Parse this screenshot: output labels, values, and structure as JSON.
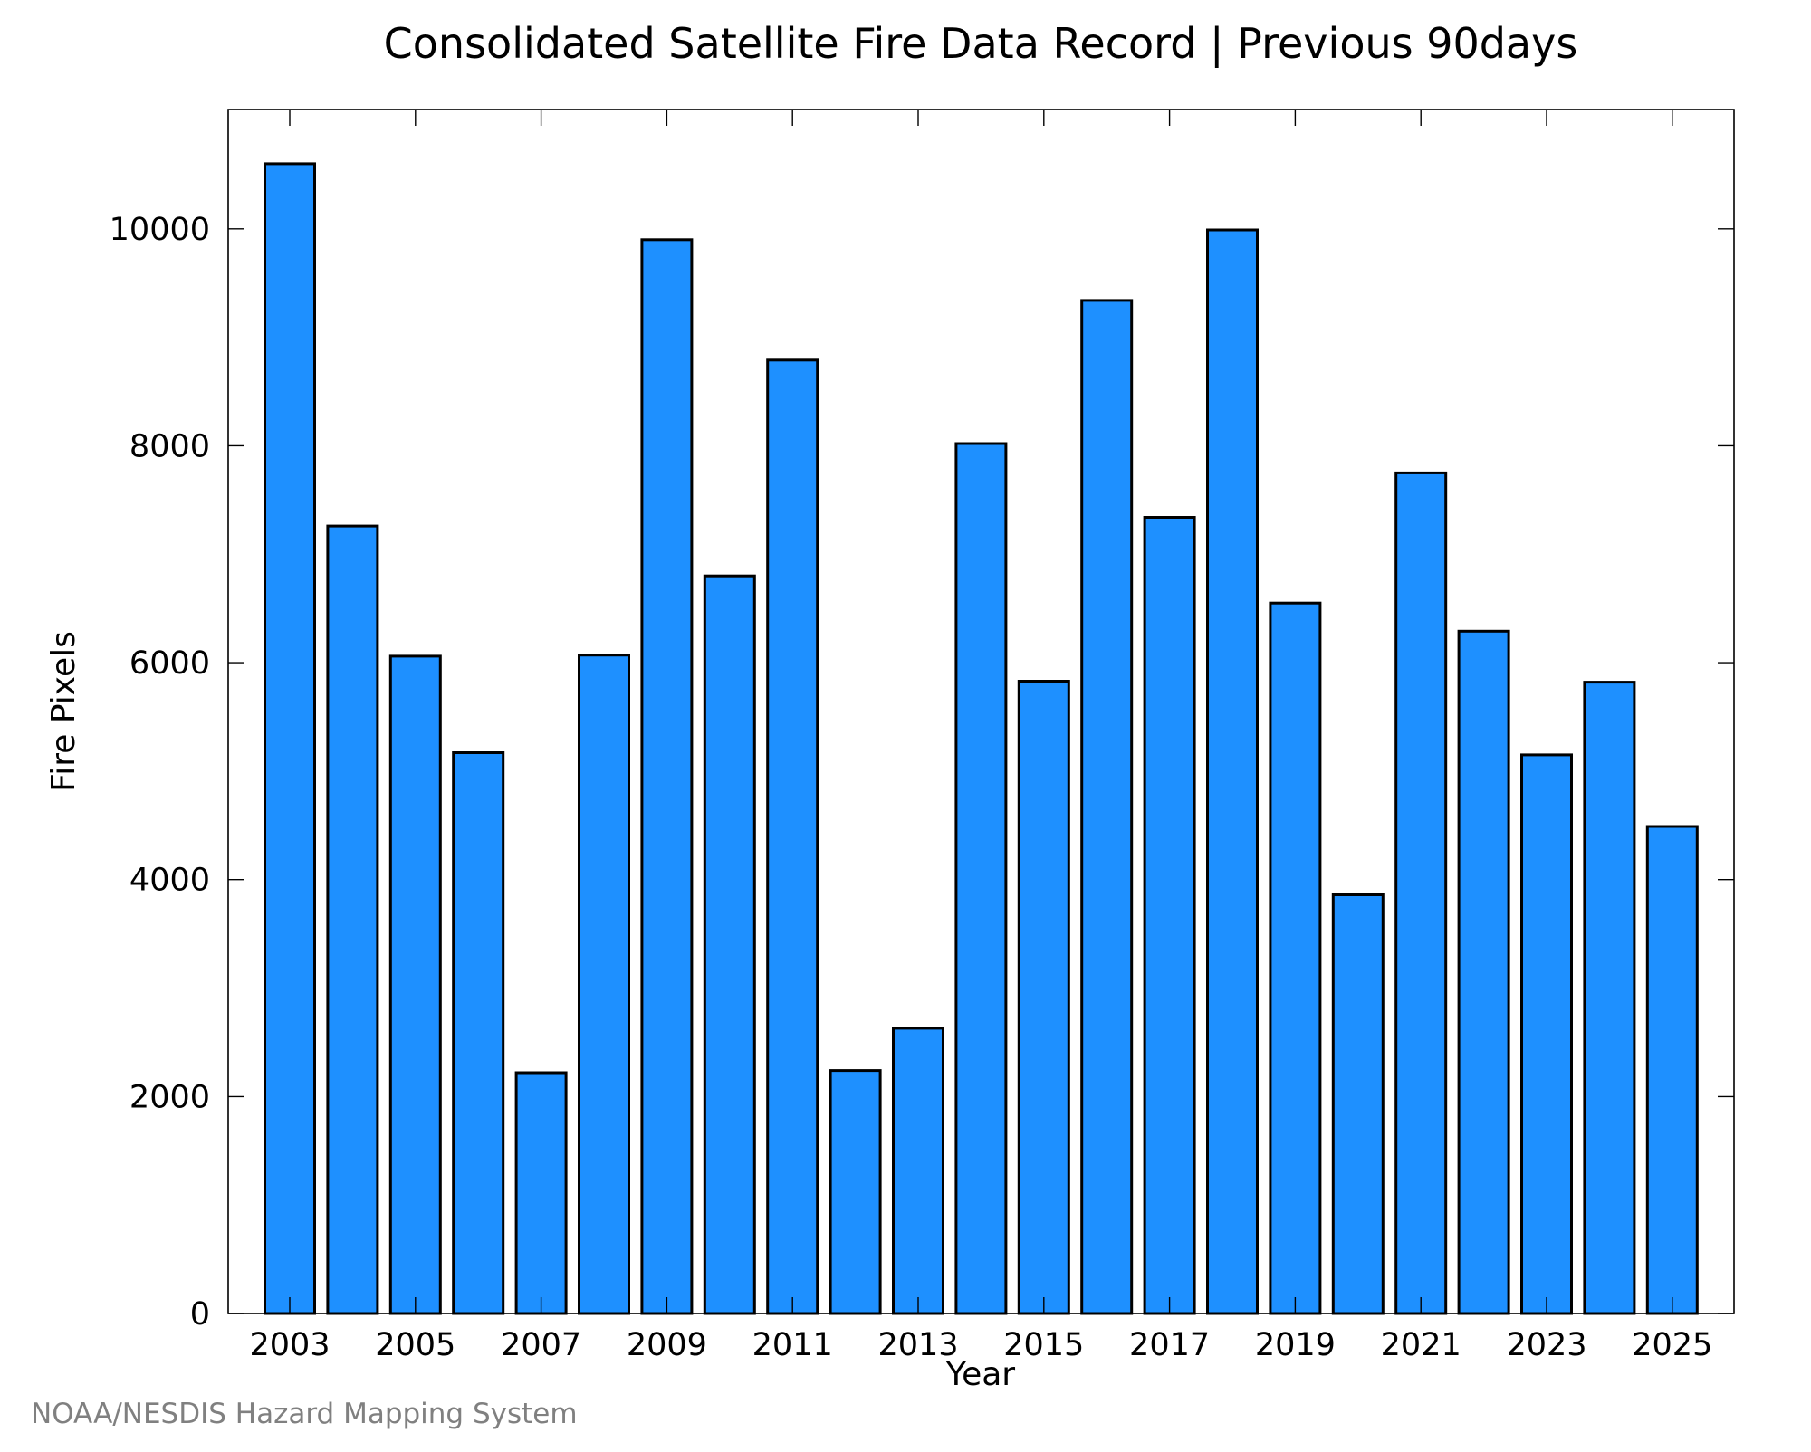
{
  "chart_data": {
    "type": "bar",
    "title": "Consolidated Satellite Fire Data Record | Previous 90days",
    "xlabel": "Year",
    "ylabel": "Fire Pixels",
    "categories": [
      "2003",
      "2004",
      "2005",
      "2006",
      "2007",
      "2008",
      "2009",
      "2010",
      "2011",
      "2012",
      "2013",
      "2014",
      "2015",
      "2016",
      "2017",
      "2018",
      "2019",
      "2020",
      "2021",
      "2022",
      "2023",
      "2024",
      "2025"
    ],
    "values": [
      10600,
      7260,
      6060,
      5170,
      2220,
      6070,
      9900,
      6800,
      8790,
      2240,
      2630,
      8020,
      5830,
      9340,
      7340,
      9990,
      6550,
      3860,
      7750,
      6290,
      5150,
      5820,
      4490
    ],
    "x_tick_labels": [
      "2003",
      "2005",
      "2007",
      "2009",
      "2011",
      "2013",
      "2015",
      "2017",
      "2019",
      "2021",
      "2023",
      "2025"
    ],
    "y_ticks": [
      0,
      2000,
      4000,
      6000,
      8000,
      10000
    ],
    "ylim": [
      0,
      11100
    ],
    "bar_color": "#1e90ff",
    "grid": false,
    "legend": "none"
  },
  "credit": "NOAA/NESDIS Hazard Mapping System"
}
